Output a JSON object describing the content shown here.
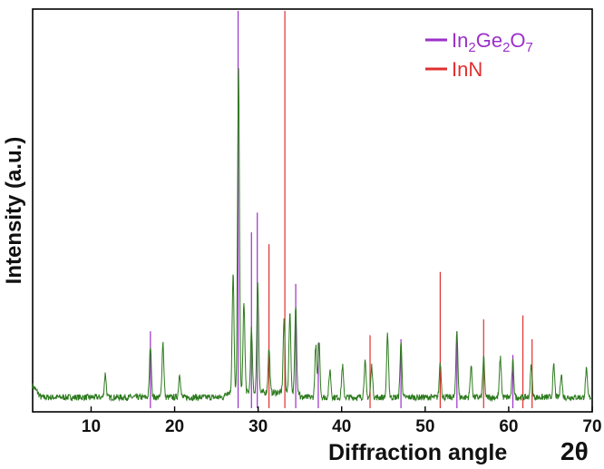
{
  "chart_data": {
    "type": "line",
    "xlabel": "Diffraction angle",
    "xlabel_symbol": "2θ",
    "ylabel": "Intensity (a.u.)",
    "xlim": [
      3,
      70
    ],
    "ylim": [
      0,
      100
    ],
    "x_ticks": [
      "10",
      "20",
      "30",
      "40",
      "50",
      "60",
      "70"
    ],
    "grid": false,
    "legend_position": "top-right",
    "legend": [
      {
        "parts": [
          [
            "In",
            ""
          ],
          [
            "2",
            "sub"
          ],
          [
            "Ge",
            ""
          ],
          [
            "2",
            "sub"
          ],
          [
            "O",
            ""
          ],
          [
            "7",
            "sub"
          ]
        ]
      },
      {
        "parts": [
          [
            "InN",
            ""
          ]
        ]
      }
    ],
    "colors": {
      "pattern": "#2d7a1e",
      "In2Ge2O7": "#9b30c8",
      "InN": "#e03030"
    },
    "reference_lines": [
      {
        "series": "In2Ge2O7",
        "x": [
          17.1,
          27.6,
          29.2,
          29.9,
          34.5,
          37.2,
          47.1,
          53.8,
          60.5
        ],
        "y": [
          19,
          100,
          44,
          49,
          31,
          16,
          17,
          19,
          13
        ]
      },
      {
        "series": "InN",
        "x": [
          31.3,
          33.2,
          43.4,
          51.8,
          57.0,
          61.7,
          62.8
        ],
        "y": [
          41,
          100,
          18,
          34,
          22,
          23,
          17
        ]
      }
    ],
    "pattern_peaks": [
      {
        "x": 11.7,
        "y": 6
      },
      {
        "x": 17.1,
        "y": 13
      },
      {
        "x": 18.6,
        "y": 14
      },
      {
        "x": 20.6,
        "y": 6
      },
      {
        "x": 27.0,
        "y": 30
      },
      {
        "x": 27.65,
        "y": 83
      },
      {
        "x": 28.3,
        "y": 23
      },
      {
        "x": 29.2,
        "y": 16
      },
      {
        "x": 29.95,
        "y": 28
      },
      {
        "x": 31.3,
        "y": 11
      },
      {
        "x": 33.1,
        "y": 18
      },
      {
        "x": 33.8,
        "y": 20
      },
      {
        "x": 34.5,
        "y": 22
      },
      {
        "x": 36.9,
        "y": 13
      },
      {
        "x": 37.3,
        "y": 14
      },
      {
        "x": 38.6,
        "y": 7
      },
      {
        "x": 40.1,
        "y": 8
      },
      {
        "x": 42.8,
        "y": 9
      },
      {
        "x": 43.6,
        "y": 8
      },
      {
        "x": 45.5,
        "y": 16
      },
      {
        "x": 47.1,
        "y": 14
      },
      {
        "x": 51.8,
        "y": 9
      },
      {
        "x": 53.8,
        "y": 17
      },
      {
        "x": 55.5,
        "y": 8
      },
      {
        "x": 57.0,
        "y": 10
      },
      {
        "x": 59.0,
        "y": 10
      },
      {
        "x": 60.5,
        "y": 9
      },
      {
        "x": 62.7,
        "y": 8
      },
      {
        "x": 65.4,
        "y": 8
      },
      {
        "x": 66.3,
        "y": 6
      },
      {
        "x": 69.3,
        "y": 7
      }
    ]
  }
}
